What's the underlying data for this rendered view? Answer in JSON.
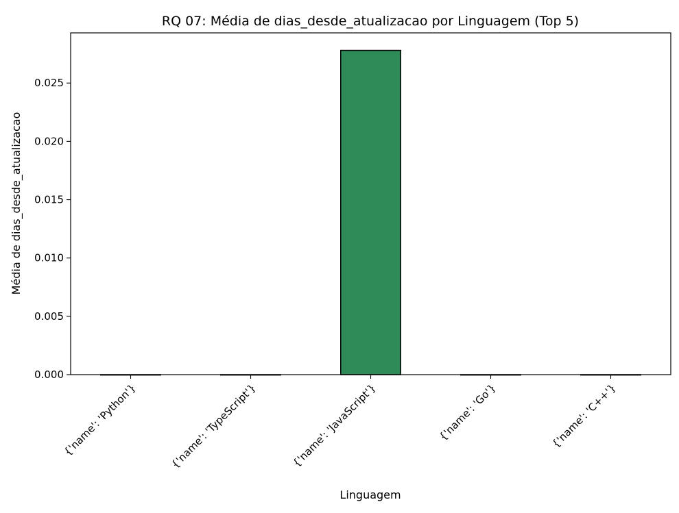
{
  "chart_data": {
    "type": "bar",
    "title": "RQ 07: Média de dias_desde_atualizacao por Linguagem (Top 5)",
    "xlabel": "Linguagem",
    "ylabel": "Média de dias_desde_atualizacao",
    "categories": [
      "{'name': 'Python'}",
      "{'name': 'TypeScript'}",
      "{'name': 'JavaScript'}",
      "{'name': 'Go'}",
      "{'name': 'C++'}"
    ],
    "values": [
      0.0,
      0.0,
      0.0278,
      0.0,
      0.0
    ],
    "ylim": [
      0,
      0.0293
    ],
    "yticks": [
      "0.000",
      "0.005",
      "0.010",
      "0.015",
      "0.020",
      "0.025"
    ],
    "grid": false,
    "legend": false,
    "colors": {
      "bar_fill": "#2e8b57",
      "bar_edge": "#000000"
    }
  }
}
